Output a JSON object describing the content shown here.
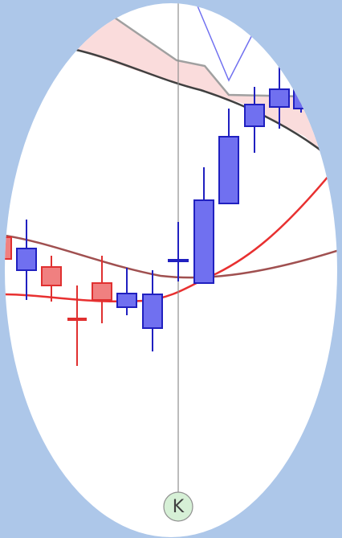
{
  "marker": {
    "label": "K"
  }
}
